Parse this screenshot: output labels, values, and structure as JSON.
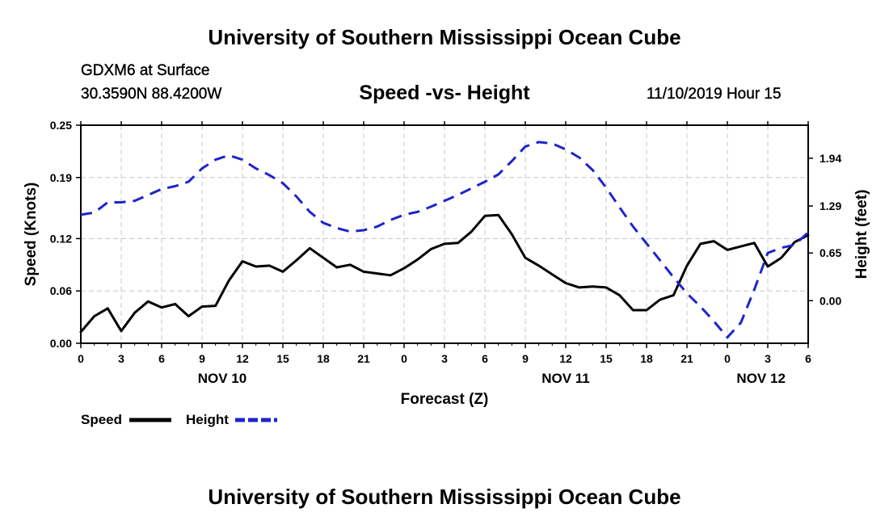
{
  "header": {
    "title": "University of Southern Mississippi Ocean Cube",
    "station": "GDXM6 at Surface",
    "coords": "30.3590N 88.4200W",
    "subtitle": "Speed -vs- Height",
    "datetime": "11/10/2019 Hour 15"
  },
  "footer": {
    "title": "University of Southern Mississippi Ocean Cube"
  },
  "chart_data": {
    "type": "line",
    "xlabel": "Forecast (Z)",
    "ylabel_left": "Speed (Knots)",
    "ylabel_right": "Height (feet)",
    "x_range_hours": [
      0,
      54
    ],
    "x_tick_labels": [
      "0",
      "3",
      "6",
      "9",
      "12",
      "15",
      "18",
      "21",
      "0",
      "3",
      "6",
      "9",
      "12",
      "15",
      "18",
      "21",
      "0",
      "3",
      "6"
    ],
    "date_labels": [
      {
        "label": "NOV 10",
        "hour": 10.5
      },
      {
        "label": "NOV 11",
        "hour": 36
      },
      {
        "label": "NOV 12",
        "hour": 50.5
      }
    ],
    "ylim_left": [
      0,
      0.25
    ],
    "left_ticks": [
      "0.00",
      "0.06",
      "0.12",
      "0.19",
      "0.25"
    ],
    "ylim_right": [
      -0.58,
      2.39
    ],
    "right_ticks": [
      "0.00",
      "0.65",
      "1.29",
      "1.94"
    ],
    "grid": true,
    "legend": [
      {
        "name": "Speed",
        "color": "#000000",
        "dashed": false
      },
      {
        "name": "Height",
        "color": "#1f24c9",
        "dashed": true
      }
    ],
    "series": [
      {
        "name": "Speed",
        "axis": "left",
        "color": "#000000",
        "x": [
          0,
          1,
          2,
          3,
          4,
          5,
          6,
          7,
          8,
          9,
          10,
          11,
          12,
          13,
          14,
          15,
          16,
          17,
          18,
          19,
          20,
          21,
          22,
          23,
          24,
          25,
          26,
          27,
          28,
          29,
          30,
          31,
          32,
          33,
          34,
          35,
          36,
          37,
          38,
          39,
          40,
          41,
          42,
          43,
          44,
          45,
          46,
          47,
          48,
          49,
          50,
          51,
          52,
          53,
          54
        ],
        "values": [
          0.013,
          0.031,
          0.04,
          0.014,
          0.035,
          0.048,
          0.041,
          0.045,
          0.031,
          0.042,
          0.043,
          0.072,
          0.094,
          0.088,
          0.089,
          0.082,
          0.095,
          0.109,
          0.098,
          0.087,
          0.09,
          0.082,
          0.08,
          0.078,
          0.086,
          0.096,
          0.108,
          0.114,
          0.115,
          0.128,
          0.146,
          0.147,
          0.125,
          0.098,
          0.089,
          0.079,
          0.069,
          0.064,
          0.065,
          0.064,
          0.055,
          0.038,
          0.038,
          0.05,
          0.055,
          0.089,
          0.114,
          0.117,
          0.107,
          0.111,
          0.115,
          0.088,
          0.098,
          0.116,
          0.124
        ]
      },
      {
        "name": "Height",
        "axis": "right",
        "color": "#1f24c9",
        "x": [
          0,
          1,
          2,
          3,
          4,
          5,
          6,
          7,
          8,
          9,
          10,
          11,
          12,
          13,
          14,
          15,
          16,
          17,
          18,
          19,
          20,
          21,
          22,
          23,
          24,
          25,
          26,
          27,
          28,
          29,
          30,
          31,
          32,
          33,
          34,
          35,
          36,
          37,
          38,
          39,
          40,
          41,
          42,
          43,
          44,
          45,
          46,
          47,
          48,
          49,
          50,
          51,
          52,
          53,
          54
        ],
        "values": [
          1.17,
          1.2,
          1.34,
          1.34,
          1.36,
          1.44,
          1.52,
          1.56,
          1.62,
          1.8,
          1.92,
          1.98,
          1.92,
          1.8,
          1.71,
          1.6,
          1.42,
          1.21,
          1.06,
          0.99,
          0.94,
          0.96,
          1.01,
          1.1,
          1.17,
          1.21,
          1.28,
          1.36,
          1.44,
          1.53,
          1.62,
          1.72,
          1.9,
          2.1,
          2.16,
          2.14,
          2.06,
          1.95,
          1.78,
          1.54,
          1.27,
          1.01,
          0.78,
          0.55,
          0.32,
          0.1,
          -0.08,
          -0.28,
          -0.5,
          -0.3,
          0.15,
          0.65,
          0.72,
          0.76,
          0.93
        ]
      }
    ]
  }
}
